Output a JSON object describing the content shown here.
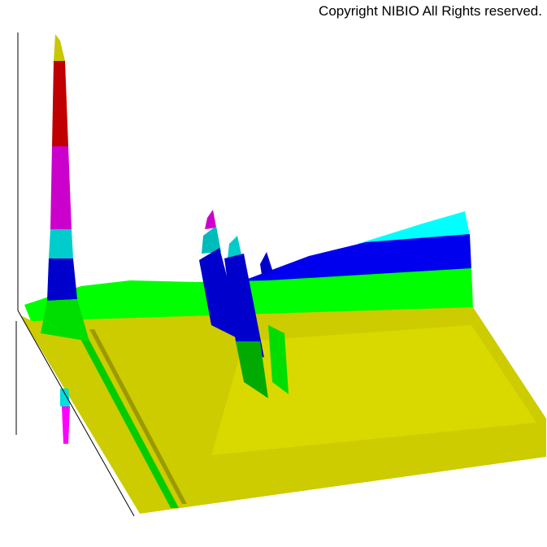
{
  "copyright": "Copyright NIBIO All Rights reserved."
}
